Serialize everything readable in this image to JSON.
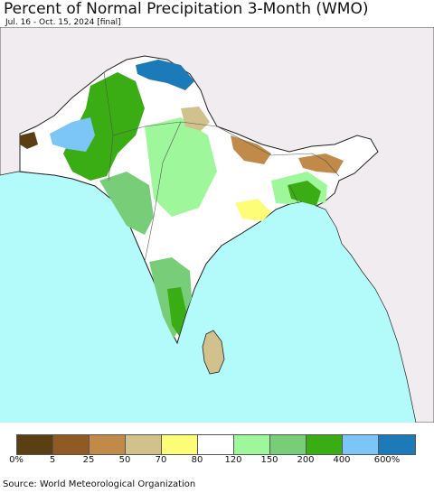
{
  "title": "Percent of Normal Precipitation 3-Month (WMO)",
  "subtitle": "Jul. 16 - Oct. 15, 2024 [final]",
  "source": "Source: World Meteorological Organization",
  "colors": {
    "ocean": "#b3fbfb",
    "land_outside": "#f0ecf0",
    "border": "#222222",
    "inner_border": "#555555"
  },
  "legend": {
    "colors": [
      "#5a3e14",
      "#8f5a23",
      "#c28a49",
      "#d1c18d",
      "#fdfd78",
      "#ffffff",
      "#9ef79a",
      "#78ce78",
      "#3aad14",
      "#7bc6f7",
      "#1d7ab8"
    ],
    "ticks": [
      "0%",
      "5",
      "25",
      "50",
      "70",
      "80",
      "120",
      "150",
      "200",
      "400",
      "600%"
    ]
  }
}
